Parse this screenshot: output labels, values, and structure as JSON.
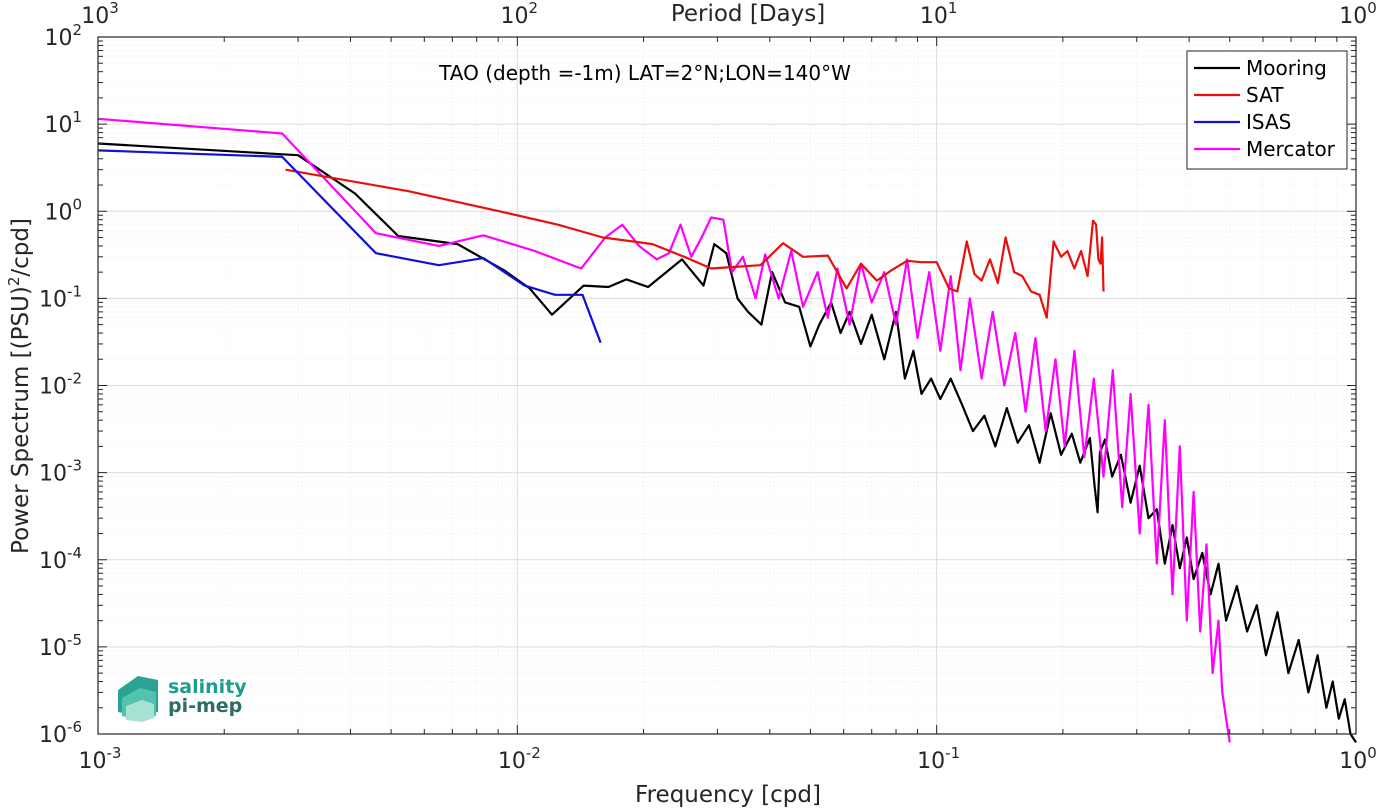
{
  "chart_data": {
    "type": "line",
    "title": "TAO (depth =-1m) LAT=2°N;LON=140°W",
    "xlabel": "Frequency [cpd]",
    "ylabel": "Power Spectrum [(PSU)",
    "ylabel_sup": "2",
    "ylabel_tail": "/cpd]",
    "top_xlabel": "Period [Days]",
    "xscale": "log",
    "yscale": "log",
    "xlim": [
      0.001,
      1
    ],
    "ylim": [
      1e-06,
      100
    ],
    "grid": true,
    "legend_position": "top-right",
    "x_ticks": [
      {
        "base": "10",
        "exp": "-3"
      },
      {
        "base": "10",
        "exp": "-2"
      },
      {
        "base": "10",
        "exp": "-1"
      },
      {
        "base": "10",
        "exp": "0"
      }
    ],
    "y_ticks": [
      {
        "base": "10",
        "exp": "-6"
      },
      {
        "base": "10",
        "exp": "-5"
      },
      {
        "base": "10",
        "exp": "-4"
      },
      {
        "base": "10",
        "exp": "-3"
      },
      {
        "base": "10",
        "exp": "-2"
      },
      {
        "base": "10",
        "exp": "-1"
      },
      {
        "base": "10",
        "exp": "0"
      },
      {
        "base": "10",
        "exp": "1"
      },
      {
        "base": "10",
        "exp": "2"
      }
    ],
    "top_ticks": [
      {
        "base": "10",
        "exp": "3"
      },
      {
        "base": "10",
        "exp": "2"
      },
      {
        "base": "10",
        "exp": "1"
      },
      {
        "base": "10",
        "exp": "0"
      }
    ],
    "series": [
      {
        "name": "Mooring",
        "color": "#000000",
        "x": [
          0.001,
          0.00275,
          0.003,
          0.0041,
          0.0052,
          0.0072,
          0.0093,
          0.0107,
          0.0121,
          0.0144,
          0.0165,
          0.0182,
          0.0205,
          0.0247,
          0.0278,
          0.0295,
          0.0315,
          0.0335,
          0.0355,
          0.0382,
          0.0405,
          0.0435,
          0.047,
          0.05,
          0.0525,
          0.056,
          0.059,
          0.062,
          0.066,
          0.07,
          0.075,
          0.08,
          0.084,
          0.088,
          0.092,
          0.097,
          0.102,
          0.108,
          0.115,
          0.122,
          0.13,
          0.138,
          0.147,
          0.156,
          0.166,
          0.176,
          0.187,
          0.198,
          0.21,
          0.22,
          0.232,
          0.238,
          0.242,
          0.245,
          0.252,
          0.262,
          0.275,
          0.29,
          0.305,
          0.32,
          0.335,
          0.35,
          0.365,
          0.38,
          0.395,
          0.41,
          0.43,
          0.45,
          0.47,
          0.49,
          0.52,
          0.55,
          0.58,
          0.61,
          0.65,
          0.69,
          0.73,
          0.77,
          0.81,
          0.85,
          0.88,
          0.91,
          0.94,
          0.97,
          1.0
        ],
        "y": [
          6.0,
          4.5,
          4.4,
          1.6,
          0.52,
          0.42,
          0.21,
          0.13,
          0.065,
          0.14,
          0.135,
          0.165,
          0.135,
          0.28,
          0.14,
          0.42,
          0.33,
          0.1,
          0.07,
          0.05,
          0.2,
          0.09,
          0.08,
          0.028,
          0.05,
          0.09,
          0.04,
          0.07,
          0.03,
          0.065,
          0.02,
          0.07,
          0.012,
          0.025,
          0.008,
          0.012,
          0.007,
          0.012,
          0.006,
          0.003,
          0.0045,
          0.002,
          0.0055,
          0.0022,
          0.0035,
          0.0013,
          0.0048,
          0.0016,
          0.0028,
          0.0013,
          0.0025,
          0.0007,
          0.00035,
          0.0017,
          0.0024,
          0.0009,
          0.0016,
          0.00045,
          0.0012,
          0.0003,
          0.00038,
          9e-05,
          0.00025,
          8e-05,
          0.00018,
          6e-05,
          0.00012,
          4e-05,
          9e-05,
          2e-05,
          5e-05,
          1.5e-05,
          3e-05,
          8e-06,
          2.5e-05,
          5e-06,
          1.2e-05,
          3e-06,
          8e-06,
          2e-06,
          4e-06,
          1.5e-06,
          2.5e-06,
          1e-06,
          8e-07
        ]
      },
      {
        "name": "SAT",
        "color": "#e8100c",
        "x": [
          0.0028,
          0.0055,
          0.0095,
          0.0125,
          0.016,
          0.021,
          0.025,
          0.029,
          0.033,
          0.038,
          0.043,
          0.048,
          0.055,
          0.061,
          0.066,
          0.072,
          0.078,
          0.085,
          0.092,
          0.1,
          0.107,
          0.112,
          0.118,
          0.123,
          0.128,
          0.134,
          0.14,
          0.146,
          0.153,
          0.16,
          0.168,
          0.176,
          0.183,
          0.19,
          0.198,
          0.205,
          0.213,
          0.221,
          0.229,
          0.236,
          0.24,
          0.243,
          0.246,
          0.248,
          0.25
        ],
        "y": [
          3.0,
          1.7,
          0.95,
          0.7,
          0.5,
          0.42,
          0.3,
          0.22,
          0.23,
          0.24,
          0.43,
          0.3,
          0.31,
          0.13,
          0.25,
          0.16,
          0.21,
          0.27,
          0.26,
          0.26,
          0.13,
          0.12,
          0.45,
          0.19,
          0.16,
          0.28,
          0.15,
          0.5,
          0.2,
          0.18,
          0.12,
          0.11,
          0.06,
          0.45,
          0.3,
          0.35,
          0.22,
          0.35,
          0.18,
          0.78,
          0.7,
          0.28,
          0.25,
          0.5,
          0.12
        ]
      },
      {
        "name": "ISAS",
        "color": "#1010dd",
        "x": [
          0.001,
          0.00275,
          0.0046,
          0.0065,
          0.0083,
          0.0104,
          0.0123,
          0.0143,
          0.0158
        ],
        "y": [
          5.0,
          4.2,
          0.33,
          0.24,
          0.29,
          0.14,
          0.11,
          0.11,
          0.031
        ]
      },
      {
        "name": "Mercator",
        "color": "#ff00ff",
        "x": [
          0.001,
          0.00275,
          0.0046,
          0.0065,
          0.0083,
          0.011,
          0.0142,
          0.0162,
          0.0178,
          0.0195,
          0.0215,
          0.023,
          0.0245,
          0.026,
          0.0275,
          0.029,
          0.031,
          0.0325,
          0.0345,
          0.037,
          0.039,
          0.042,
          0.045,
          0.048,
          0.052,
          0.055,
          0.058,
          0.062,
          0.066,
          0.07,
          0.075,
          0.08,
          0.085,
          0.09,
          0.096,
          0.102,
          0.108,
          0.114,
          0.12,
          0.128,
          0.136,
          0.145,
          0.154,
          0.163,
          0.172,
          0.182,
          0.192,
          0.202,
          0.213,
          0.225,
          0.237,
          0.25,
          0.263,
          0.277,
          0.29,
          0.305,
          0.32,
          0.335,
          0.35,
          0.365,
          0.38,
          0.395,
          0.41,
          0.425,
          0.44,
          0.455,
          0.47,
          0.48,
          0.49,
          0.5
        ],
        "y": [
          11.5,
          7.8,
          0.56,
          0.4,
          0.53,
          0.35,
          0.22,
          0.5,
          0.7,
          0.4,
          0.28,
          0.33,
          0.7,
          0.3,
          0.5,
          0.85,
          0.8,
          0.2,
          0.3,
          0.1,
          0.32,
          0.1,
          0.35,
          0.08,
          0.2,
          0.06,
          0.22,
          0.05,
          0.25,
          0.09,
          0.2,
          0.05,
          0.28,
          0.035,
          0.2,
          0.025,
          0.18,
          0.015,
          0.1,
          0.012,
          0.07,
          0.01,
          0.04,
          0.005,
          0.035,
          0.003,
          0.02,
          0.002,
          0.025,
          0.0015,
          0.012,
          0.0009,
          0.015,
          0.0004,
          0.008,
          0.0002,
          0.006,
          9e-05,
          0.004,
          4e-05,
          0.002,
          2e-05,
          0.0006,
          1.5e-05,
          0.00015,
          5e-06,
          2e-05,
          3e-06,
          1.5e-06,
          8e-07
        ]
      }
    ],
    "logo_lines": [
      "salinity",
      "pi-mep"
    ],
    "colors": {
      "axis": "#262626",
      "grid_major": "#dcdcdc",
      "grid_minor": "#ececec"
    }
  }
}
